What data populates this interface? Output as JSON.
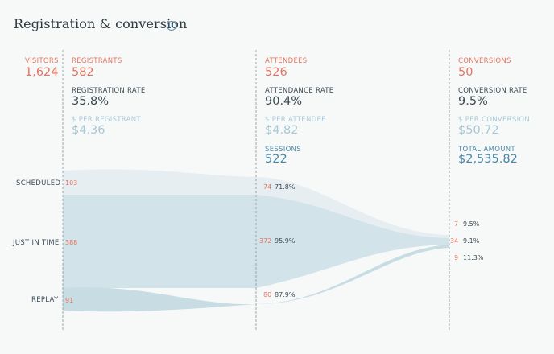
{
  "header": {
    "title": "Registration & conversion",
    "info_icon": "info-icon",
    "info_glyph": "i"
  },
  "colors": {
    "coral": "#e3735f",
    "dark": "#3a4a52",
    "pale": "#a7c8d6",
    "blue": "#4a88a8"
  },
  "metrics": {
    "visitors": {
      "label": "VISITORS",
      "value": "1,624"
    },
    "registrants": {
      "label": "REGISTRANTS",
      "value": "582"
    },
    "registration_rate": {
      "label": "REGISTRATION RATE",
      "value": "35.8%"
    },
    "per_registrant": {
      "label": "$ PER REGISTRANT",
      "value": "$4.36"
    },
    "attendees": {
      "label": "ATTENDEES",
      "value": "526"
    },
    "attendance_rate": {
      "label": "ATTENDANCE RATE",
      "value": "90.4%"
    },
    "per_attendee": {
      "label": "$ PER ATTENDEE",
      "value": "$4.82"
    },
    "sessions": {
      "label": "SESSIONS",
      "value": "522"
    },
    "conversions": {
      "label": "CONVERSIONS",
      "value": "50"
    },
    "conversion_rate": {
      "label": "CONVERSION RATE",
      "value": "9.5%"
    },
    "per_conversion": {
      "label": "$ PER CONVERSION",
      "value": "$50.72"
    },
    "total_amount": {
      "label": "TOTAL AMOUNT",
      "value": "$2,535.82"
    }
  },
  "rows": {
    "scheduled": {
      "label": "SCHEDULED",
      "registrants": "103",
      "attendees": "74",
      "attendance_pct": "71.8%",
      "conversions": "7",
      "conversion_pct": "9.5%"
    },
    "just_in_time": {
      "label": "JUST IN TIME",
      "registrants": "388",
      "attendees": "372",
      "attendance_pct": "95.9%",
      "conversions": "34",
      "conversion_pct": "9.1%"
    },
    "replay": {
      "label": "REPLAY",
      "registrants": "91",
      "attendees": "80",
      "attendance_pct": "87.9%",
      "conversions": "9",
      "conversion_pct": "11.3%"
    }
  }
}
